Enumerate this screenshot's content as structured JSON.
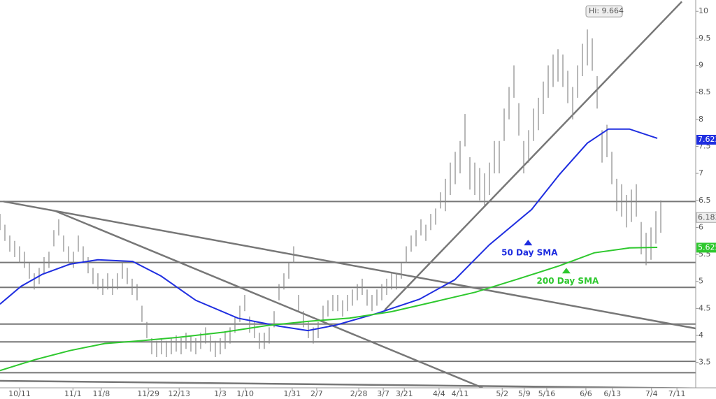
{
  "chart_data": {
    "type": "ohlc",
    "ylim": [
      3.03,
      10.21
    ],
    "yticks": [
      3.5,
      4,
      4.5,
      5,
      5.5,
      6,
      6.5,
      7,
      7.5,
      8,
      8.5,
      9,
      9.5,
      10
    ],
    "xlim": [
      0,
      142.14
    ],
    "xticks": [
      {
        "value": 4,
        "label": "10/11"
      },
      {
        "value": 14.9,
        "label": "11/1"
      },
      {
        "value": 20.7,
        "label": "11/8"
      },
      {
        "value": 30.3,
        "label": "11/29"
      },
      {
        "value": 36.6,
        "label": "12/13"
      },
      {
        "value": 45,
        "label": "1/3"
      },
      {
        "value": 50.1,
        "label": "1/10"
      },
      {
        "value": 59.7,
        "label": "1/31"
      },
      {
        "value": 64.7,
        "label": "2/7"
      },
      {
        "value": 73.3,
        "label": "2/28"
      },
      {
        "value": 78.3,
        "label": "3/7"
      },
      {
        "value": 82.6,
        "label": "3/21"
      },
      {
        "value": 89.7,
        "label": "4/4"
      },
      {
        "value": 94,
        "label": "4/11"
      },
      {
        "value": 102.6,
        "label": "5/2"
      },
      {
        "value": 107.1,
        "label": "5/9"
      },
      {
        "value": 111.7,
        "label": "5/16"
      },
      {
        "value": 119.7,
        "label": "6/6"
      },
      {
        "value": 125.1,
        "label": "6/13"
      },
      {
        "value": 133.1,
        "label": "7/4"
      },
      {
        "value": 138.3,
        "label": "7/11"
      }
    ],
    "bars": {
      "color": "#888888",
      "high": [
        6.25,
        6.05,
        5.85,
        5.75,
        5.65,
        5.55,
        5.35,
        5.15,
        5.25,
        5.45,
        5.55,
        5.95,
        6.15,
        5.85,
        5.65,
        5.55,
        5.85,
        5.65,
        5.45,
        5.25,
        5.15,
        5.05,
        5.15,
        5.05,
        5.15,
        5.35,
        5.25,
        5.05,
        4.95,
        4.55,
        4.25,
        3.95,
        3.9,
        3.95,
        3.9,
        3.95,
        4.0,
        3.95,
        4.05,
        4.0,
        3.95,
        4.05,
        4.15,
        4.0,
        3.9,
        3.95,
        4.05,
        4.15,
        4.35,
        4.55,
        4.75,
        4.35,
        4.25,
        4.05,
        4.05,
        4.15,
        4.45,
        4.95,
        5.15,
        5.35,
        5.65,
        4.75,
        4.45,
        4.25,
        4.15,
        4.25,
        4.55,
        4.65,
        4.75,
        4.75,
        4.65,
        4.75,
        4.85,
        4.95,
        5.05,
        4.85,
        4.75,
        4.85,
        4.95,
        5.05,
        5.15,
        5.15,
        5.35,
        5.65,
        5.85,
        5.95,
        6.15,
        6.05,
        6.25,
        6.35,
        6.65,
        6.9,
        7.2,
        7.4,
        7.6,
        8.1,
        7.3,
        7.2,
        7.1,
        7.0,
        7.2,
        7.6,
        7.6,
        8.2,
        8.6,
        9.0,
        8.3,
        7.6,
        7.8,
        8.2,
        8.4,
        8.7,
        9.0,
        9.2,
        9.3,
        9.2,
        8.9,
        8.6,
        9.0,
        9.4,
        9.664,
        9.5,
        8.8,
        7.8,
        7.9,
        7.4,
        6.9,
        6.8,
        6.6,
        6.7,
        6.8,
        6.1,
        5.9,
        6.0,
        6.3,
        6.5
      ],
      "low": [
        5.95,
        5.75,
        5.55,
        5.45,
        5.35,
        5.25,
        5.05,
        4.85,
        4.95,
        5.15,
        5.25,
        5.65,
        5.85,
        5.55,
        5.35,
        5.25,
        5.55,
        5.35,
        5.15,
        4.95,
        4.85,
        4.75,
        4.85,
        4.75,
        4.85,
        5.05,
        4.95,
        4.75,
        4.65,
        4.25,
        3.95,
        3.65,
        3.6,
        3.65,
        3.6,
        3.65,
        3.7,
        3.65,
        3.75,
        3.7,
        3.65,
        3.75,
        3.85,
        3.7,
        3.6,
        3.65,
        3.75,
        3.85,
        4.05,
        4.25,
        4.45,
        4.05,
        3.95,
        3.75,
        3.75,
        3.85,
        4.15,
        4.65,
        4.85,
        5.05,
        5.35,
        4.45,
        4.15,
        3.95,
        3.85,
        3.95,
        4.25,
        4.35,
        4.45,
        4.45,
        4.35,
        4.45,
        4.55,
        4.65,
        4.75,
        4.55,
        4.45,
        4.55,
        4.65,
        4.75,
        4.85,
        4.85,
        5.05,
        5.35,
        5.55,
        5.65,
        5.85,
        5.75,
        5.95,
        6.05,
        6.35,
        6.3,
        6.6,
        6.8,
        7.0,
        7.5,
        6.7,
        6.6,
        6.5,
        6.4,
        6.6,
        7.0,
        7.0,
        7.6,
        8.0,
        8.4,
        7.7,
        7.0,
        7.2,
        7.6,
        7.8,
        8.1,
        8.4,
        8.6,
        8.7,
        8.6,
        8.3,
        8.0,
        8.4,
        8.8,
        9.0,
        8.9,
        8.2,
        7.2,
        7.3,
        6.8,
        6.3,
        6.2,
        6.0,
        6.1,
        6.2,
        5.5,
        5.3,
        5.4,
        5.7,
        5.9
      ],
      "last": 6.183,
      "last_label": "6.183"
    },
    "high_label": {
      "text": "Hi: 9.664",
      "value": 9.664,
      "x": 120
    },
    "series": [
      {
        "name": "50 Day SMA",
        "color": "#1f2ee0",
        "last": 7.623,
        "last_label": "7.623",
        "x": [
          0,
          4.3,
          8.6,
          14.3,
          20,
          27.1,
          32.9,
          40,
          48.6,
          57.1,
          62.9,
          68.6,
          77.1,
          85.7,
          92.9,
          100,
          108.6,
          114.3,
          120,
          124.3,
          128.6,
          134.3
        ],
        "values": [
          4.58,
          4.91,
          5.13,
          5.32,
          5.4,
          5.37,
          5.1,
          4.65,
          4.32,
          4.17,
          4.09,
          4.19,
          4.41,
          4.67,
          5.03,
          5.68,
          6.33,
          6.98,
          7.56,
          7.82,
          7.82,
          7.65
        ],
        "marker": {
          "x": 107.9,
          "value": 5.72
        }
      },
      {
        "name": "200 Day SMA",
        "color": "#2ec82e",
        "last": 5.625,
        "last_label": "5.625",
        "x": [
          0,
          7.1,
          14.3,
          21.4,
          28.6,
          37.1,
          45.7,
          54.3,
          62.9,
          71.4,
          80,
          88.6,
          97.1,
          105.7,
          114.3,
          121.4,
          128.6,
          134.3
        ],
        "values": [
          3.35,
          3.55,
          3.72,
          3.85,
          3.9,
          3.97,
          4.06,
          4.18,
          4.26,
          4.32,
          4.44,
          4.62,
          4.8,
          5.04,
          5.29,
          5.53,
          5.62,
          5.63
        ],
        "marker": {
          "x": 115.7,
          "value": 5.2
        }
      }
    ],
    "levels": [
      6.48,
      5.35,
      4.89,
      4.21,
      3.88,
      3.52,
      3.31
    ],
    "trendlines": [
      {
        "x": [
          0.7,
          142.1
        ],
        "y": [
          6.48,
          4.13
        ]
      },
      {
        "x": [
          11.4,
          98.6
        ],
        "y": [
          6.3,
          3.03
        ]
      },
      {
        "x": [
          0,
          142.1
        ],
        "y": [
          3.16,
          3.02
        ]
      },
      {
        "x": [
          78.6,
          139.3
        ],
        "y": [
          4.47,
          10.18
        ]
      }
    ]
  }
}
